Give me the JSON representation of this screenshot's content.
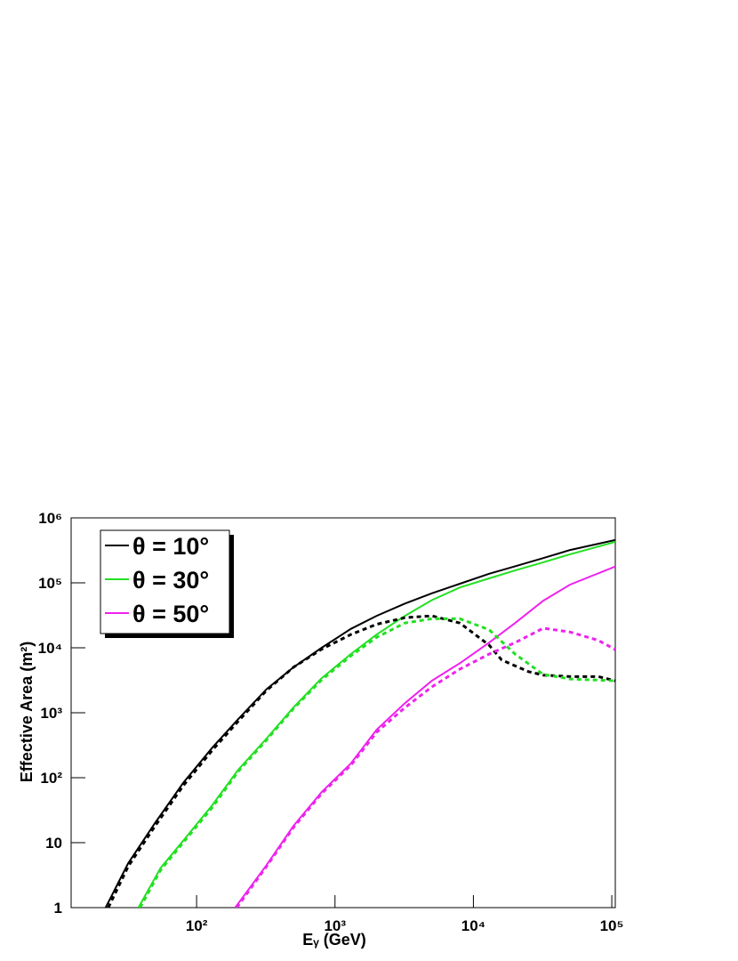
{
  "chart_data": {
    "type": "line",
    "xlabel": "Eᵧ (GeV)",
    "ylabel": "Effective Area (m²)",
    "xscale": "log",
    "yscale": "log",
    "xlim": [
      12.4,
      106000
    ],
    "ylim": [
      1,
      1000000
    ],
    "xticks": [
      {
        "value": 100,
        "label": "10²"
      },
      {
        "value": 1000,
        "label": "10³"
      },
      {
        "value": 10000,
        "label": "10⁴"
      },
      {
        "value": 100000,
        "label": "10⁵"
      }
    ],
    "yticks": [
      1,
      10,
      {
        "value": 100,
        "label": "10²"
      },
      {
        "value": 1000,
        "label": "10³"
      },
      {
        "value": 10000,
        "label": "10⁴"
      },
      {
        "value": 100000,
        "label": "10⁵"
      },
      {
        "value": 1000000,
        "label": "10⁶"
      }
    ],
    "legend": "top-left",
    "series": [
      {
        "name": "θ = 10°",
        "color": "#000000",
        "dashed": false,
        "x": [
          22,
          32,
          50,
          80,
          130,
          200,
          320,
          500,
          800,
          1300,
          2000,
          3200,
          5000,
          8000,
          13000,
          20000,
          32000,
          50000,
          106000
        ],
        "values": [
          1,
          4.8,
          20,
          83,
          290,
          800,
          2300,
          5000,
          10000,
          19500,
          31000,
          48000,
          69000,
          97000,
          138000,
          180000,
          240000,
          320000,
          457000
        ]
      },
      {
        "name": "θ = 30°",
        "color": "#22e022",
        "dashed": false,
        "x": [
          38,
          55,
          80,
          130,
          200,
          320,
          500,
          800,
          1300,
          2000,
          3200,
          5000,
          8000,
          13000,
          20000,
          32000,
          50000,
          106000
        ],
        "values": [
          1,
          4.1,
          10.7,
          38,
          133,
          400,
          1200,
          3400,
          8000,
          16000,
          31000,
          54000,
          85000,
          117000,
          155000,
          207000,
          275000,
          427000
        ]
      },
      {
        "name": "θ = 50°",
        "color": "#ee22ee",
        "dashed": false,
        "x": [
          190,
          320,
          500,
          800,
          1300,
          2000,
          3200,
          5000,
          8000,
          13000,
          20000,
          32000,
          50000,
          106000
        ],
        "values": [
          1,
          4.5,
          18,
          60,
          165,
          550,
          1400,
          3100,
          5800,
          12000,
          24000,
          53000,
          94000,
          178000
        ]
      },
      {
        "color": "#000000",
        "dashed": true,
        "x": [
          23,
          32,
          50,
          80,
          130,
          200,
          320,
          500,
          800,
          1300,
          2000,
          3200,
          5000,
          8000,
          13000,
          16000,
          25000,
          32000,
          50000,
          80000,
          106000
        ],
        "values": [
          1,
          4.3,
          18,
          75,
          265,
          740,
          2200,
          5000,
          9500,
          16000,
          23000,
          29000,
          31000,
          24000,
          11000,
          6500,
          4300,
          3800,
          3600,
          3600,
          3100
        ]
      },
      {
        "color": "#22e022",
        "dashed": true,
        "x": [
          39,
          55,
          80,
          130,
          200,
          320,
          500,
          800,
          1300,
          2000,
          3200,
          5000,
          8000,
          13000,
          20000,
          32000,
          50000,
          106000
        ],
        "values": [
          1,
          3.8,
          10,
          35,
          125,
          380,
          1150,
          3200,
          7500,
          14500,
          24000,
          28000,
          28000,
          19000,
          8000,
          3900,
          3300,
          3100
        ]
      },
      {
        "color": "#ee22ee",
        "dashed": true,
        "x": [
          195,
          320,
          500,
          800,
          1300,
          2000,
          3200,
          5000,
          8000,
          13000,
          20000,
          32000,
          50000,
          80000,
          106000
        ],
        "values": [
          1,
          4.3,
          17,
          57,
          155,
          500,
          1200,
          2500,
          4700,
          8000,
          12000,
          20000,
          17500,
          13000,
          9400
        ]
      }
    ]
  }
}
